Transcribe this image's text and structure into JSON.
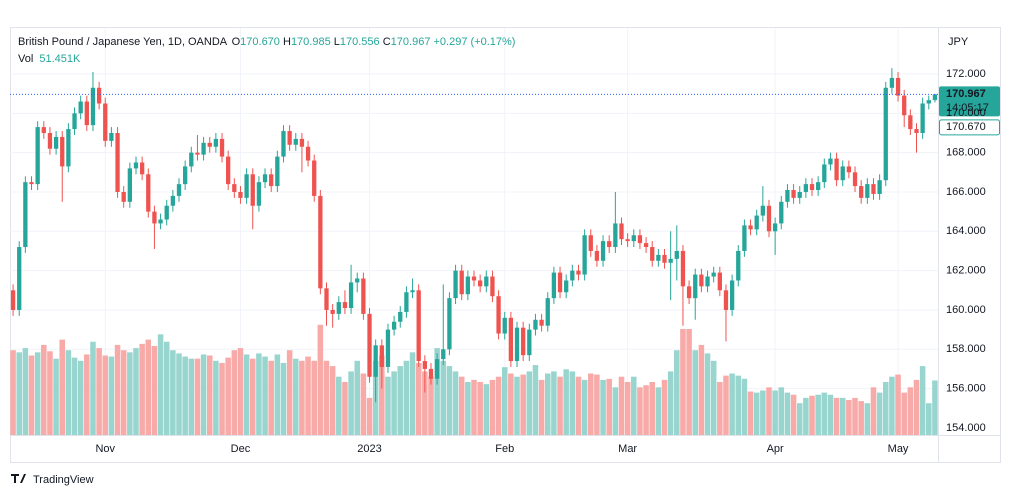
{
  "chart_data": {
    "type": "candlestick",
    "symbol": "British Pound / Japanese Yen, 1D, OANDA",
    "legend": {
      "o_key": "O",
      "open": "170.670",
      "h_key": "H",
      "high": "170.985",
      "l_key": "L",
      "low": "170.556",
      "c_key": "C",
      "close": "170.967",
      "change": "+0.297 (+0.17%)"
    },
    "volume_label": "Vol",
    "volume_value": "51.451K",
    "currency": "JPY",
    "price_tags": {
      "last": "170.967",
      "countdown": "14:05:17",
      "open": "170.670"
    },
    "brand": "TradingView",
    "colors": {
      "up": "#26a69a",
      "down": "#ef5350",
      "volume_up": "#99d5cf",
      "volume_down": "#f7aaa8",
      "last_line": "#2962ff",
      "grid": "#f0f3fa"
    },
    "grid": true,
    "ylim": [
      153.64,
      174.34
    ],
    "yticks": [
      {
        "value": 154,
        "label": "154.000"
      },
      {
        "value": 156,
        "label": "156.000"
      },
      {
        "value": 158,
        "label": "158.000"
      },
      {
        "value": 160,
        "label": "160.000"
      },
      {
        "value": 162,
        "label": "162.000"
      },
      {
        "value": 164,
        "label": "164.000"
      },
      {
        "value": 166,
        "label": "166.000"
      },
      {
        "value": 168,
        "label": "168.000"
      },
      {
        "value": 170,
        "label": "170.000"
      },
      {
        "value": 172,
        "label": "172.000"
      }
    ],
    "xticks": [
      {
        "value": 15,
        "label": "Nov"
      },
      {
        "value": 37,
        "label": "Dec"
      },
      {
        "value": 58,
        "label": "2023"
      },
      {
        "value": 80,
        "label": "Feb"
      },
      {
        "value": 100,
        "label": "Mar"
      },
      {
        "value": 124,
        "label": "Apr"
      },
      {
        "value": 144,
        "label": "May"
      }
    ],
    "volume_ylim": [
      0,
      384
    ],
    "open": [
      161.0,
      160.0,
      163.2,
      166.5,
      166.4,
      169.3,
      169.0,
      168.2,
      168.8,
      167.3,
      169.2,
      170.0,
      170.6,
      169.4,
      171.3,
      170.5,
      168.6,
      169.0,
      166.0,
      165.5,
      167.2,
      167.5,
      166.9,
      165.0,
      164.4,
      164.6,
      165.3,
      165.8,
      166.4,
      167.3,
      168.0,
      167.9,
      168.5,
      168.3,
      168.7,
      167.8,
      166.4,
      166.0,
      165.7,
      166.9,
      165.3,
      166.5,
      166.9,
      166.3,
      167.8,
      169.1,
      168.4,
      168.7,
      168.3,
      167.6,
      165.8,
      161.1,
      160.0,
      159.8,
      160.4,
      160.1,
      161.4,
      161.6,
      159.8,
      156.6,
      158.2,
      157.1,
      159.0,
      159.4,
      159.9,
      160.9,
      161.0,
      157.4,
      157.0,
      156.5,
      157.5,
      158.0,
      160.6,
      162.0,
      160.8,
      161.7,
      161.5,
      161.2,
      161.7,
      160.7,
      158.8,
      159.6,
      157.4,
      159.1,
      157.7,
      159.0,
      159.5,
      159.2,
      160.6,
      161.9,
      160.9,
      161.5,
      162.0,
      161.8,
      163.8,
      163.0,
      162.5,
      163.5,
      163.2,
      164.4,
      163.6,
      163.5,
      163.8,
      163.4,
      163.2,
      162.5,
      162.8,
      162.4,
      162.6,
      163.0,
      161.2,
      160.6,
      161.8,
      161.2,
      161.7,
      161.9,
      161.0,
      160.0,
      161.5,
      163.0,
      164.3,
      164.1,
      164.8,
      165.3,
      164.0,
      164.4,
      165.5,
      166.1,
      165.7,
      166.0,
      166.4,
      166.1,
      166.5,
      167.4,
      167.7,
      166.6,
      167.3,
      167.0,
      166.3,
      165.7,
      166.4,
      165.9,
      166.6,
      171.3,
      171.8,
      170.9,
      169.9,
      169.2,
      169.0,
      170.5,
      170.67
    ],
    "high": [
      161.3,
      163.5,
      166.8,
      166.8,
      169.6,
      169.6,
      169.3,
      169.1,
      169.1,
      169.5,
      170.3,
      170.9,
      170.9,
      172.1,
      171.6,
      170.8,
      169.3,
      169.3,
      166.3,
      167.5,
      167.8,
      167.8,
      167.2,
      165.3,
      164.9,
      165.6,
      166.1,
      166.7,
      167.6,
      168.3,
      168.9,
      168.8,
      168.8,
      169.0,
      169.0,
      168.1,
      166.7,
      166.3,
      167.2,
      167.2,
      166.8,
      167.2,
      167.2,
      168.1,
      169.4,
      169.4,
      169.0,
      169.0,
      168.6,
      167.9,
      166.1,
      161.4,
      160.3,
      160.7,
      161.0,
      162.3,
      161.9,
      161.9,
      160.1,
      158.5,
      158.5,
      159.3,
      159.7,
      160.2,
      161.2,
      161.6,
      161.3,
      157.7,
      157.3,
      157.8,
      161.3,
      160.9,
      162.3,
      162.3,
      162.0,
      162.0,
      161.8,
      162.0,
      162.0,
      161.0,
      159.9,
      159.9,
      159.4,
      159.4,
      159.3,
      159.8,
      159.8,
      160.9,
      162.2,
      162.2,
      161.8,
      162.3,
      162.3,
      164.1,
      164.1,
      163.3,
      163.8,
      163.8,
      166.0,
      164.7,
      163.9,
      164.1,
      164.1,
      163.7,
      163.5,
      163.1,
      163.1,
      164.0,
      164.3,
      163.3,
      161.5,
      162.1,
      162.1,
      162.0,
      162.2,
      162.2,
      161.3,
      161.8,
      163.3,
      164.6,
      164.6,
      165.1,
      166.3,
      165.6,
      164.7,
      165.8,
      166.4,
      166.4,
      166.3,
      166.7,
      166.7,
      166.8,
      167.7,
      168.0,
      168.0,
      167.6,
      167.6,
      167.3,
      166.6,
      166.7,
      166.7,
      166.9,
      171.6,
      172.3,
      172.1,
      171.2,
      170.2,
      169.5,
      170.8,
      170.9,
      170.985
    ],
    "low": [
      159.7,
      159.7,
      162.9,
      166.1,
      166.1,
      168.7,
      167.9,
      167.9,
      165.5,
      167.0,
      168.9,
      169.7,
      169.1,
      169.1,
      170.2,
      168.3,
      168.3,
      165.7,
      165.2,
      165.2,
      166.9,
      166.6,
      164.7,
      163.1,
      164.1,
      164.3,
      165.0,
      165.5,
      166.1,
      167.0,
      167.6,
      167.6,
      168.0,
      168.0,
      167.5,
      166.1,
      165.7,
      165.4,
      165.4,
      164.1,
      165.0,
      166.2,
      166.0,
      166.0,
      167.5,
      168.1,
      168.1,
      167.0,
      167.3,
      165.5,
      160.8,
      159.2,
      159.1,
      159.5,
      159.8,
      159.8,
      160.9,
      159.5,
      156.3,
      155.3,
      156.0,
      156.8,
      158.7,
      159.1,
      159.6,
      160.6,
      157.1,
      155.8,
      156.2,
      156.2,
      157.2,
      157.7,
      160.3,
      160.5,
      160.5,
      161.2,
      160.9,
      160.9,
      160.4,
      158.5,
      158.5,
      157.1,
      157.1,
      157.4,
      157.4,
      158.7,
      158.9,
      158.9,
      160.3,
      160.6,
      160.6,
      161.2,
      161.5,
      161.5,
      162.7,
      162.2,
      162.2,
      162.9,
      162.9,
      163.3,
      163.2,
      163.2,
      163.1,
      162.9,
      162.2,
      162.2,
      162.1,
      160.5,
      161.5,
      159.2,
      160.3,
      159.5,
      160.9,
      160.9,
      161.4,
      160.7,
      158.4,
      159.7,
      161.2,
      162.7,
      163.8,
      163.8,
      164.5,
      163.7,
      162.8,
      164.1,
      165.2,
      165.4,
      165.4,
      165.7,
      165.8,
      165.8,
      166.2,
      167.1,
      166.3,
      166.3,
      166.7,
      166.0,
      165.4,
      165.4,
      165.6,
      165.6,
      166.3,
      171.0,
      170.6,
      169.3,
      168.9,
      168.0,
      168.7,
      170.2,
      170.556
    ],
    "close": [
      160.0,
      163.2,
      166.5,
      166.4,
      169.3,
      169.0,
      168.2,
      168.8,
      167.3,
      169.2,
      170.0,
      170.6,
      169.4,
      171.3,
      170.5,
      168.6,
      169.0,
      166.0,
      165.5,
      167.2,
      167.5,
      166.9,
      165.0,
      164.4,
      164.6,
      165.3,
      165.8,
      166.4,
      167.3,
      168.0,
      167.9,
      168.5,
      168.3,
      168.7,
      167.8,
      166.4,
      166.0,
      165.7,
      166.9,
      165.3,
      166.5,
      166.9,
      166.3,
      167.8,
      169.1,
      168.4,
      168.7,
      168.3,
      167.6,
      165.8,
      161.1,
      160.0,
      159.8,
      160.4,
      160.1,
      161.4,
      161.6,
      159.8,
      156.6,
      158.2,
      157.1,
      159.0,
      159.4,
      159.9,
      160.9,
      161.0,
      157.4,
      157.0,
      156.5,
      157.5,
      158.0,
      160.6,
      162.0,
      160.8,
      161.7,
      161.5,
      161.2,
      161.7,
      160.7,
      158.8,
      159.6,
      157.4,
      159.1,
      157.7,
      159.0,
      159.5,
      159.2,
      160.6,
      161.9,
      160.9,
      161.5,
      162.0,
      161.8,
      163.8,
      163.0,
      162.5,
      163.5,
      163.2,
      164.4,
      163.6,
      163.5,
      163.8,
      163.4,
      163.2,
      162.5,
      162.8,
      162.4,
      162.6,
      163.0,
      161.2,
      160.6,
      161.8,
      161.2,
      161.7,
      161.9,
      161.0,
      160.0,
      161.5,
      163.0,
      164.3,
      164.1,
      164.8,
      165.3,
      164.0,
      164.4,
      165.5,
      166.1,
      165.7,
      166.0,
      166.4,
      166.1,
      166.5,
      167.4,
      167.7,
      166.6,
      167.3,
      167.0,
      166.3,
      165.7,
      166.4,
      165.9,
      166.6,
      171.3,
      171.8,
      170.9,
      169.9,
      169.2,
      169.0,
      170.5,
      170.67,
      170.967
    ],
    "volume": [
      80,
      78,
      82,
      75,
      78,
      85,
      79,
      72,
      90,
      80,
      73,
      70,
      76,
      88,
      82,
      75,
      74,
      85,
      80,
      78,
      82,
      86,
      90,
      84,
      95,
      88,
      80,
      77,
      74,
      72,
      72,
      76,
      75,
      70,
      68,
      73,
      80,
      82,
      76,
      72,
      77,
      74,
      70,
      76,
      68,
      80,
      72,
      70,
      74,
      70,
      104,
      70,
      65,
      55,
      50,
      60,
      70,
      58,
      35,
      70,
      75,
      55,
      60,
      65,
      70,
      78,
      68,
      60,
      55,
      82,
      70,
      65,
      60,
      55,
      50,
      52,
      50,
      48,
      52,
      55,
      64,
      58,
      55,
      57,
      60,
      66,
      52,
      58,
      60,
      55,
      62,
      60,
      55,
      52,
      58,
      57,
      52,
      53,
      45,
      55,
      50,
      55,
      45,
      47,
      50,
      45,
      52,
      60,
      80,
      100,
      100,
      80,
      85,
      77,
      70,
      50,
      56,
      58,
      56,
      53,
      41,
      40,
      42,
      45,
      42,
      45,
      40,
      38,
      30,
      35,
      37,
      38,
      40,
      38,
      35,
      35,
      33,
      35,
      32,
      30,
      45,
      40,
      50,
      55,
      57,
      40,
      45,
      52,
      65,
      30,
      51.451
    ]
  }
}
